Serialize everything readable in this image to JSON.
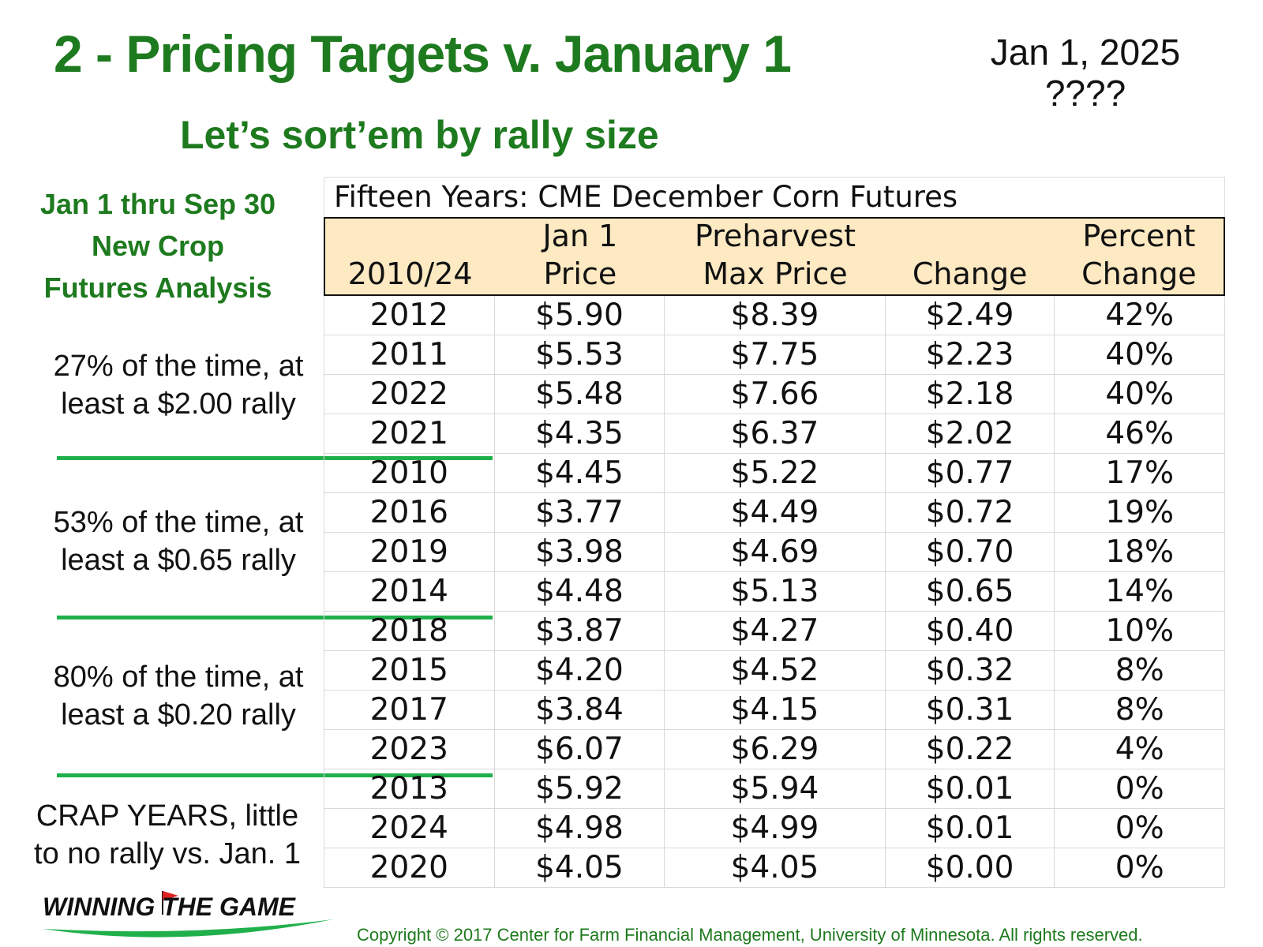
{
  "title": "2 - Pricing Targets v. January 1",
  "subtitle": "Let’s sort’em by rally size",
  "date_box": {
    "date": "Jan 1, 2025",
    "value": "????"
  },
  "side_heading": [
    "Jan 1 thru Sep 30",
    "New Crop",
    "Futures Analysis"
  ],
  "notes": [
    {
      "line1": "27% of the time, at",
      "line2": "least a $2.00 rally"
    },
    {
      "line1": "53% of the time, at",
      "line2": "least a $0.65 rally"
    },
    {
      "line1": "80% of the time, at",
      "line2": "least a $0.20 rally"
    },
    {
      "line1": "CRAP YEARS, little",
      "line2": "to no rally vs. Jan. 1"
    }
  ],
  "table": {
    "title": "Fifteen Years: CME December Corn Futures",
    "headers": [
      {
        "line1": "",
        "line2": "2010/24"
      },
      {
        "line1": "Jan 1",
        "line2": "Price"
      },
      {
        "line1": "Preharvest",
        "line2": "Max Price"
      },
      {
        "line1": "",
        "line2": "Change"
      },
      {
        "line1": "Percent",
        "line2": "Change"
      }
    ],
    "rows": [
      [
        "2012",
        "$5.90",
        "$8.39",
        "$2.49",
        "42%"
      ],
      [
        "2011",
        "$5.53",
        "$7.75",
        "$2.23",
        "40%"
      ],
      [
        "2022",
        "$5.48",
        "$7.66",
        "$2.18",
        "40%"
      ],
      [
        "2021",
        "$4.35",
        "$6.37",
        "$2.02",
        "46%"
      ],
      [
        "2010",
        "$4.45",
        "$5.22",
        "$0.77",
        "17%"
      ],
      [
        "2016",
        "$3.77",
        "$4.49",
        "$0.72",
        "19%"
      ],
      [
        "2019",
        "$3.98",
        "$4.69",
        "$0.70",
        "18%"
      ],
      [
        "2014",
        "$4.48",
        "$5.13",
        "$0.65",
        "14%"
      ],
      [
        "2018",
        "$3.87",
        "$4.27",
        "$0.40",
        "10%"
      ],
      [
        "2015",
        "$4.20",
        "$4.52",
        "$0.32",
        "8%"
      ],
      [
        "2017",
        "$3.84",
        "$4.15",
        "$0.31",
        "8%"
      ],
      [
        "2023",
        "$6.07",
        "$6.29",
        "$0.22",
        "4%"
      ],
      [
        "2013",
        "$5.92",
        "$5.94",
        "$0.01",
        "0%"
      ],
      [
        "2024",
        "$4.98",
        "$4.99",
        "$0.01",
        "0%"
      ],
      [
        "2020",
        "$4.05",
        "$4.05",
        "$0.00",
        "0%"
      ]
    ]
  },
  "logo": {
    "text": "WINNING THE GAME"
  },
  "copyright": "Copyright © 2017 Center for Farm Financial Management, University of Minnesota. All rights reserved.",
  "colors": {
    "title_green": "#1e7a1e",
    "divider_green": "#20b04b",
    "header_fill": "#fde9c2"
  }
}
